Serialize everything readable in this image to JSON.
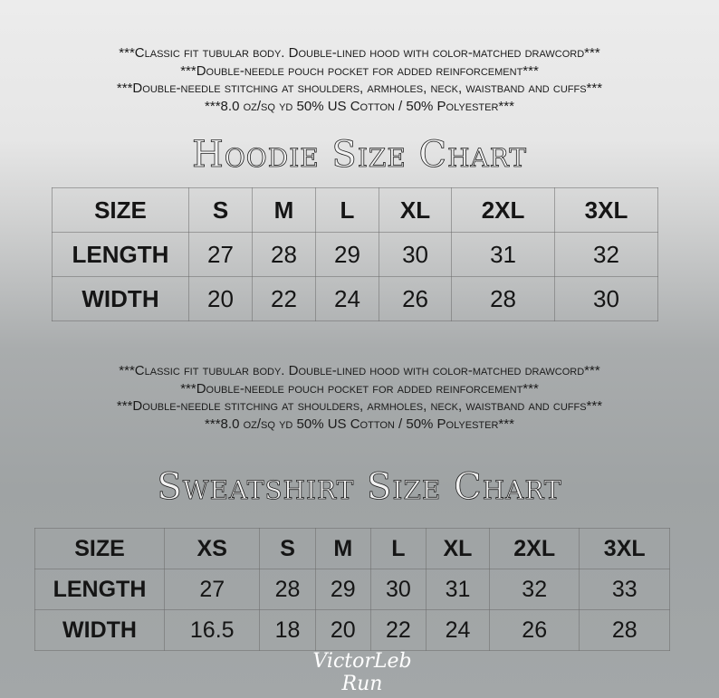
{
  "hoodie": {
    "notes": [
      "***Classic fit tubular body. Double-lined hood with color-matched drawcord***",
      "***Double-needle pouch pocket for added reinforcement***",
      "***Double-needle stitching at shoulders, armholes, neck, waistband and cuffs***",
      "***8.0 oz/sq yd 50% US Cotton / 50% Polyester***"
    ],
    "title": "Hoodie Size Chart",
    "header": [
      "SIZE",
      "S",
      "M",
      "L",
      "XL",
      "2XL",
      "3XL"
    ],
    "rows": [
      [
        "LENGTH",
        "27",
        "28",
        "29",
        "30",
        "31",
        "32"
      ],
      [
        "WIDTH",
        "20",
        "22",
        "24",
        "26",
        "28",
        "30"
      ]
    ]
  },
  "sweatshirt": {
    "notes": [
      "***Classic fit tubular body. Double-lined hood with color-matched drawcord***",
      "***Double-needle pouch pocket for added reinforcement***",
      "***Double-needle stitching at shoulders, armholes, neck, waistband and cuffs***",
      "***8.0 oz/sq yd 50% US Cotton / 50% Polyester***"
    ],
    "title": "Sweatshirt Size Chart",
    "header": [
      "SIZE",
      "XS",
      "S",
      "M",
      "L",
      "XL",
      "2XL",
      "3XL"
    ],
    "rows": [
      [
        "LENGTH",
        "27",
        "28",
        "29",
        "30",
        "31",
        "32",
        "33"
      ],
      [
        "WIDTH",
        "16.5",
        "18",
        "20",
        "22",
        "24",
        "26",
        "28"
      ]
    ]
  },
  "signature": "VictorLeb Run"
}
